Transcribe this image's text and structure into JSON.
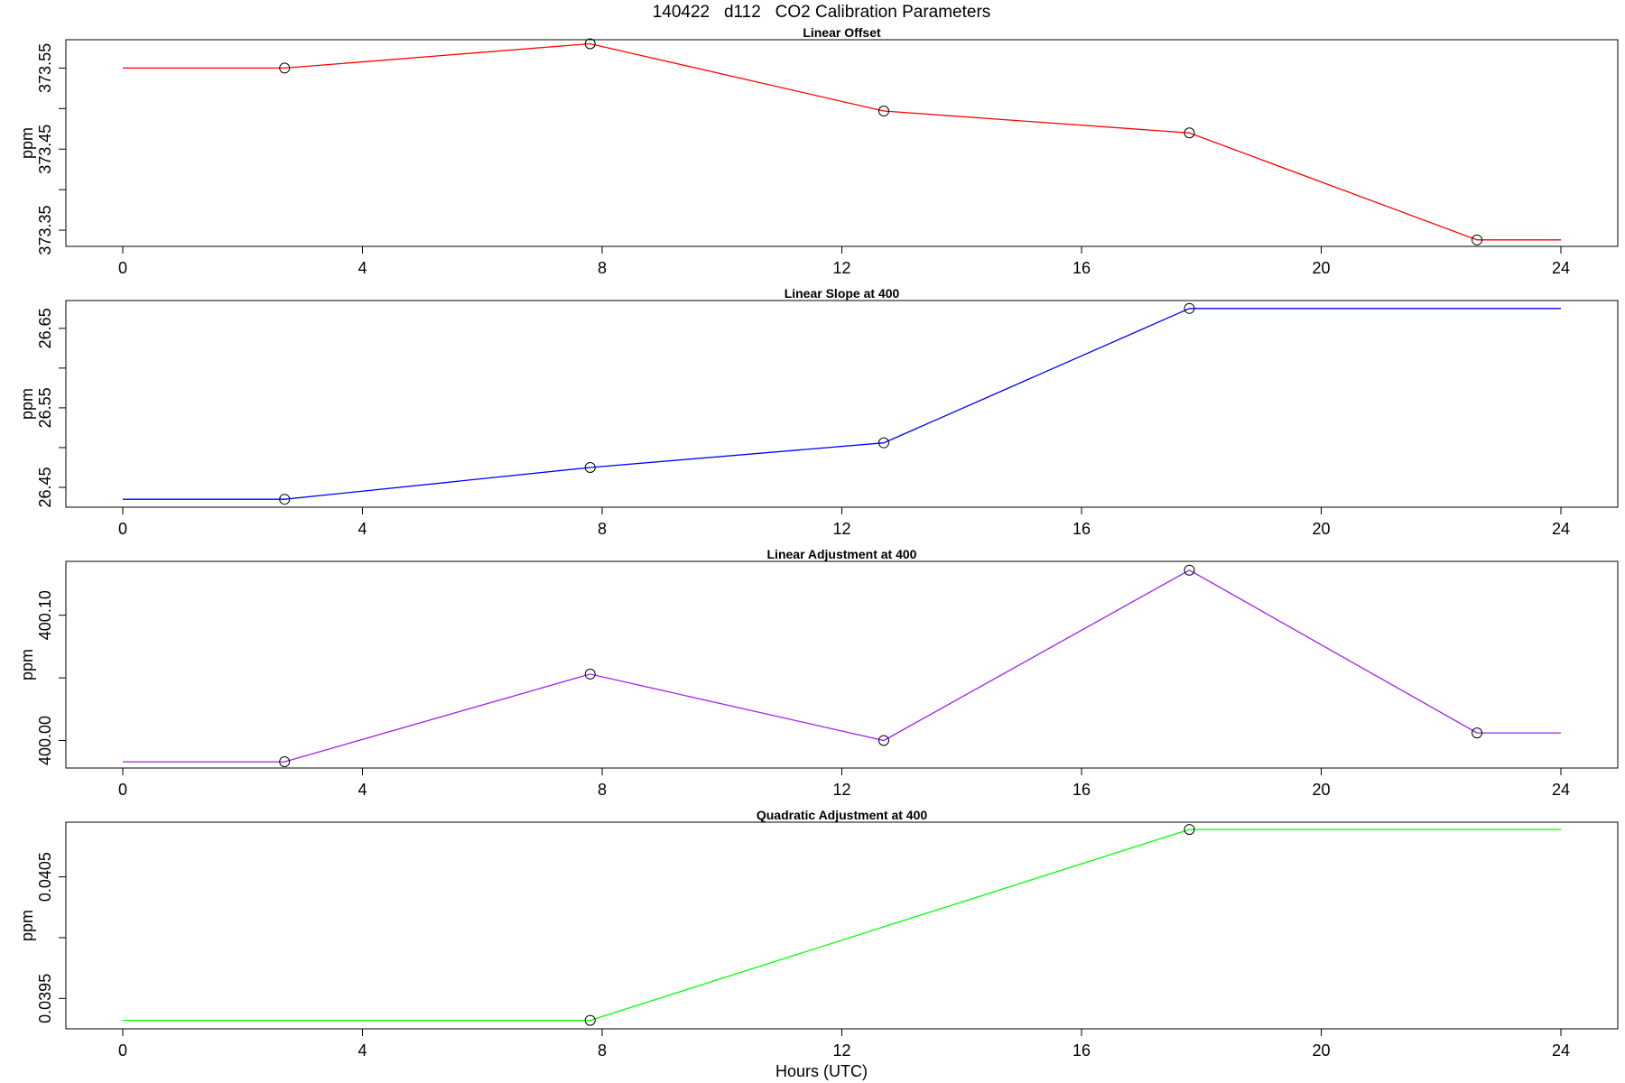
{
  "figure": {
    "title": "140422   d112   CO2 Calibration Parameters",
    "xlabel": "Hours (UTC)"
  },
  "chart_data": [
    {
      "type": "line",
      "title": "Linear Offset",
      "xlabel": "",
      "ylabel": "ppm",
      "color": "#ff0000",
      "xlim": [
        0,
        24
      ],
      "ylim": [
        373.33,
        373.585
      ],
      "xticks": [
        0,
        4,
        8,
        12,
        16,
        20,
        24
      ],
      "yticks": [
        373.35,
        373.4,
        373.45,
        373.5,
        373.55
      ],
      "ytick_labels": [
        "373.35",
        "",
        "373.45",
        "",
        "373.55"
      ],
      "grid": false,
      "series": [
        {
          "x": [
            0,
            2.7,
            7.8,
            12.7,
            17.8,
            22.6,
            24
          ],
          "y": [
            373.55,
            373.55,
            373.58,
            373.497,
            373.47,
            373.338,
            373.338
          ],
          "markers": [
            false,
            true,
            true,
            true,
            true,
            true,
            false
          ]
        }
      ]
    },
    {
      "type": "line",
      "title": "Linear Slope at 400",
      "xlabel": "",
      "ylabel": "ppm",
      "color": "#0000ff",
      "xlim": [
        0,
        24
      ],
      "ylim": [
        26.425,
        26.685
      ],
      "xticks": [
        0,
        4,
        8,
        12,
        16,
        20,
        24
      ],
      "yticks": [
        26.45,
        26.5,
        26.55,
        26.6,
        26.65
      ],
      "ytick_labels": [
        "26.45",
        "",
        "26.55",
        "",
        "26.65"
      ],
      "grid": false,
      "series": [
        {
          "x": [
            0,
            2.7,
            7.8,
            12.7,
            17.8,
            24
          ],
          "y": [
            26.435,
            26.435,
            26.475,
            26.506,
            26.675,
            26.675
          ],
          "markers": [
            false,
            true,
            true,
            true,
            true,
            false
          ]
        }
      ]
    },
    {
      "type": "line",
      "title": "Linear Adjustment at 400",
      "xlabel": "",
      "ylabel": "ppm",
      "color": "#a020f0",
      "xlim": [
        0,
        24
      ],
      "ylim": [
        399.978,
        400.143
      ],
      "xticks": [
        0,
        4,
        8,
        12,
        16,
        20,
        24
      ],
      "yticks": [
        400.0,
        400.05,
        400.1
      ],
      "ytick_labels": [
        "400.00",
        "",
        "400.10"
      ],
      "grid": false,
      "series": [
        {
          "x": [
            0,
            2.7,
            7.8,
            12.7,
            17.8,
            22.6,
            24
          ],
          "y": [
            399.983,
            399.983,
            400.053,
            400.0,
            400.136,
            400.006,
            400.006
          ],
          "markers": [
            false,
            true,
            true,
            true,
            true,
            true,
            false
          ]
        }
      ]
    },
    {
      "type": "line",
      "title": "Quadratic Adjustment at 400",
      "xlabel": "",
      "ylabel": "ppm",
      "color": "#00ff00",
      "xlim": [
        0,
        24
      ],
      "ylim": [
        0.03925,
        0.04095
      ],
      "xticks": [
        0,
        4,
        8,
        12,
        16,
        20,
        24
      ],
      "yticks": [
        0.0395,
        0.04,
        0.0405
      ],
      "ytick_labels": [
        "0.0395",
        "",
        "0.0405"
      ],
      "grid": false,
      "series": [
        {
          "x": [
            0,
            7.8,
            17.8,
            24
          ],
          "y": [
            0.03932,
            0.03932,
            0.04089,
            0.04089
          ],
          "markers": [
            false,
            true,
            true,
            false
          ]
        }
      ]
    }
  ]
}
